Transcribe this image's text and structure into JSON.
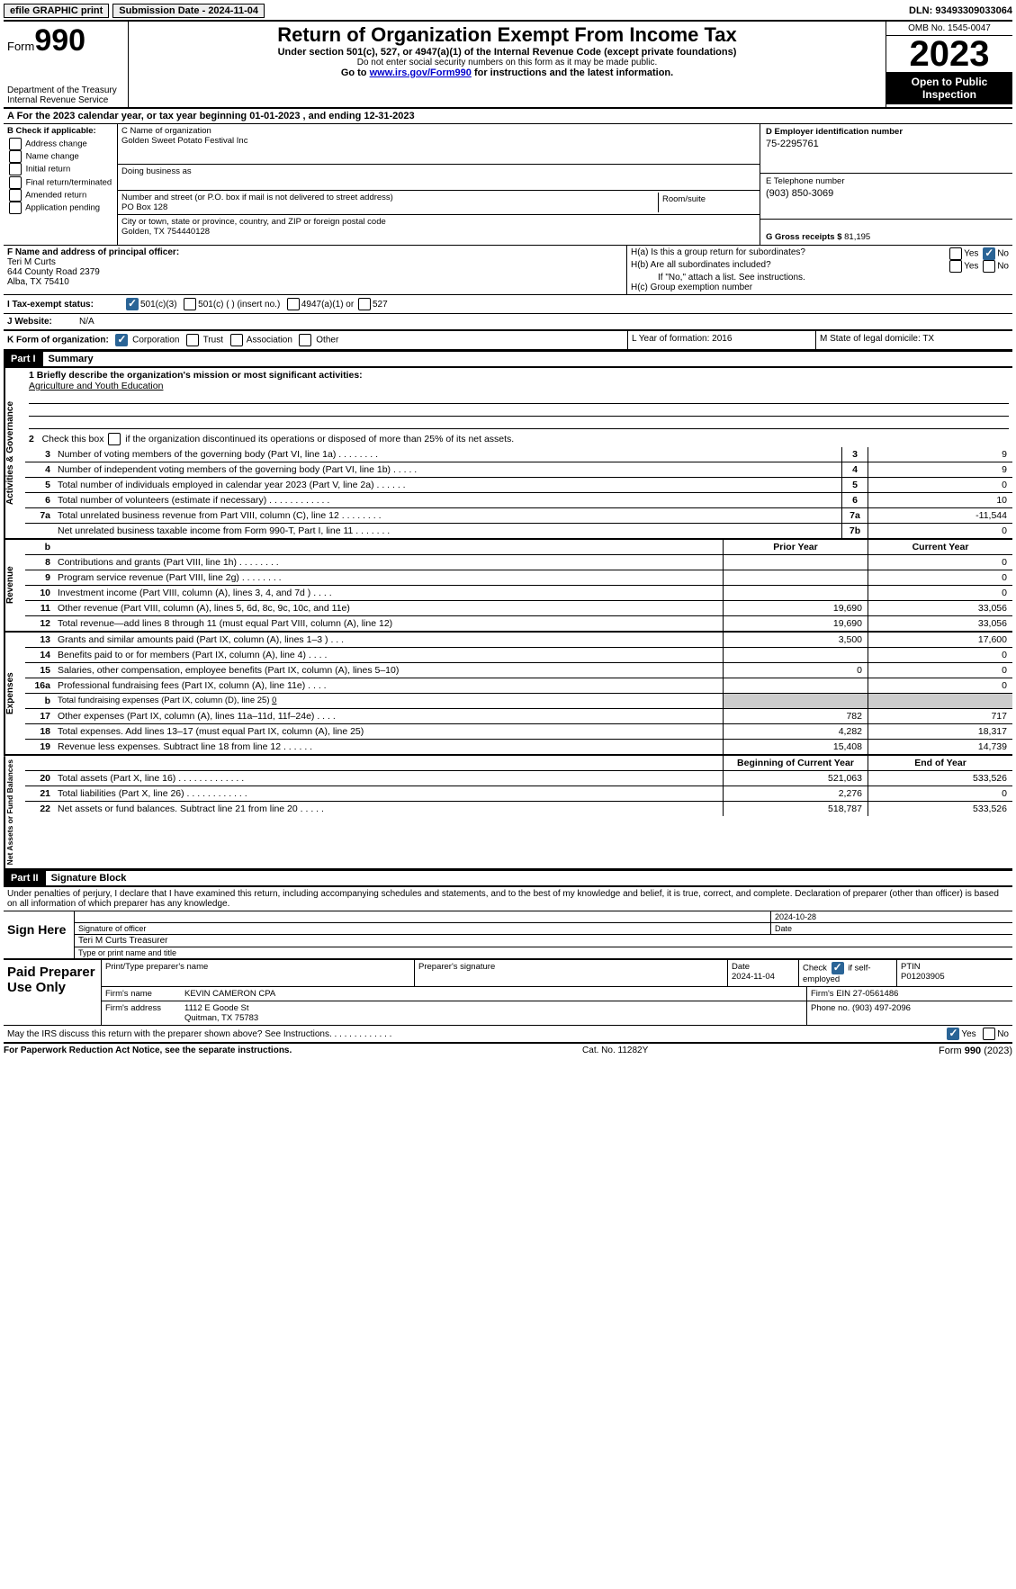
{
  "topbar": {
    "efile": "efile GRAPHIC print",
    "submission_label": "Submission Date - 2024-11-04",
    "dln": "DLN: 93493309033064"
  },
  "header": {
    "form_word": "Form",
    "form_num": "990",
    "dept": "Department of the Treasury Internal Revenue Service",
    "title": "Return of Organization Exempt From Income Tax",
    "sub1": "Under section 501(c), 527, or 4947(a)(1) of the Internal Revenue Code (except private foundations)",
    "sub2": "Do not enter social security numbers on this form as it may be made public.",
    "sub3_pre": "Go to ",
    "sub3_link": "www.irs.gov/Form990",
    "sub3_post": " for instructions and the latest information.",
    "omb": "OMB No. 1545-0047",
    "year": "2023",
    "inspect": "Open to Public Inspection"
  },
  "row_a": "A  For the 2023 calendar year, or tax year beginning 01-01-2023    , and ending 12-31-2023",
  "box_b": {
    "title": "B Check if applicable:",
    "opts": [
      "Address change",
      "Name change",
      "Initial return",
      "Final return/terminated",
      "Amended return",
      "Application pending"
    ]
  },
  "box_c": {
    "name_label": "C Name of organization",
    "name": "Golden Sweet Potato Festival Inc",
    "dba_label": "Doing business as",
    "dba": "",
    "street_label": "Number and street (or P.O. box if mail is not delivered to street address)",
    "street": "PO Box 128",
    "room_label": "Room/suite",
    "city_label": "City or town, state or province, country, and ZIP or foreign postal code",
    "city": "Golden, TX   754440128"
  },
  "box_d": {
    "label": "D Employer identification number",
    "val": "75-2295761"
  },
  "box_e": {
    "label": "E Telephone number",
    "val": "(903) 850-3069"
  },
  "box_g": {
    "label": "G Gross receipts $",
    "val": "81,195"
  },
  "box_f": {
    "label": "F  Name and address of principal officer:",
    "name": "Teri M Curts",
    "addr1": "644 County Road 2379",
    "addr2": "Alba, TX   75410"
  },
  "box_h": {
    "a": "H(a)  Is this a group return for subordinates?",
    "b": "H(b)  Are all subordinates included?",
    "b_note": "If \"No,\" attach a list. See instructions.",
    "c": "H(c)  Group exemption number",
    "yes": "Yes",
    "no": "No"
  },
  "row_i": {
    "label": "I    Tax-exempt status:",
    "o1": "501(c)(3)",
    "o2": "501(c) (  ) (insert no.)",
    "o3": "4947(a)(1) or",
    "o4": "527"
  },
  "row_j": {
    "label": "J    Website:",
    "val": "N/A"
  },
  "row_k": {
    "label": "K Form of organization:",
    "o1": "Corporation",
    "o2": "Trust",
    "o3": "Association",
    "o4": "Other"
  },
  "row_l": "L Year of formation: 2016",
  "row_m": "M State of legal domicile: TX",
  "part1": {
    "hdr": "Part I",
    "title": "Summary"
  },
  "governance": {
    "label": "Activities & Governance",
    "l1_label": "1   Briefly describe the organization's mission or most significant activities:",
    "l1_val": "Agriculture and Youth Education",
    "l2": "2   Check this box       if the organization discontinued its operations or disposed of more than 25% of its net assets.",
    "lines": [
      {
        "n": "3",
        "d": "Number of voting members of the governing body (Part VI, line 1a)   .    .    .    .    .    .    .    .",
        "b": "3",
        "v": "9"
      },
      {
        "n": "4",
        "d": "Number of independent voting members of the governing body (Part VI, line 1b)   .    .    .    .    .",
        "b": "4",
        "v": "9"
      },
      {
        "n": "5",
        "d": "Total number of individuals employed in calendar year 2023 (Part V, line 2a)   .    .    .    .    .    .",
        "b": "5",
        "v": "0"
      },
      {
        "n": "6",
        "d": "Total number of volunteers (estimate if necessary)   .    .    .    .    .    .    .    .    .    .    .    .",
        "b": "6",
        "v": "10"
      },
      {
        "n": "7a",
        "d": "Total unrelated business revenue from Part VIII, column (C), line 12   .    .    .    .    .    .    .    .",
        "b": "7a",
        "v": "-11,544"
      },
      {
        "n": "",
        "d": "Net unrelated business taxable income from Form 990-T, Part I, line 11   .    .    .    .    .    .    .",
        "b": "7b",
        "v": "0"
      }
    ],
    "b_label": "b"
  },
  "revenue": {
    "label": "Revenue",
    "hdr_prior": "Prior Year",
    "hdr_curr": "Current Year",
    "lines": [
      {
        "n": "8",
        "d": "Contributions and grants (Part VIII, line 1h)   .   .   .   .   .   .   .   .",
        "p": "",
        "c": "0"
      },
      {
        "n": "9",
        "d": "Program service revenue (Part VIII, line 2g)   .   .   .   .   .   .   .   .",
        "p": "",
        "c": "0"
      },
      {
        "n": "10",
        "d": "Investment income (Part VIII, column (A), lines 3, 4, and 7d )   .   .   .   .",
        "p": "",
        "c": "0"
      },
      {
        "n": "11",
        "d": "Other revenue (Part VIII, column (A), lines 5, 6d, 8c, 9c, 10c, and 11e)",
        "p": "19,690",
        "c": "33,056"
      },
      {
        "n": "12",
        "d": "Total revenue—add lines 8 through 11 (must equal Part VIII, column (A), line 12)",
        "p": "19,690",
        "c": "33,056"
      }
    ]
  },
  "expenses": {
    "label": "Expenses",
    "lines": [
      {
        "n": "13",
        "d": "Grants and similar amounts paid (Part IX, column (A), lines 1–3 )   .   .   .",
        "p": "3,500",
        "c": "17,600"
      },
      {
        "n": "14",
        "d": "Benefits paid to or for members (Part IX, column (A), line 4)   .   .   .   .",
        "p": "",
        "c": "0"
      },
      {
        "n": "15",
        "d": "Salaries, other compensation, employee benefits (Part IX, column (A), lines 5–10)",
        "p": "0",
        "c": "0"
      },
      {
        "n": "16a",
        "d": "Professional fundraising fees (Part IX, column (A), line 11e)   .   .   .   .",
        "p": "",
        "c": "0"
      },
      {
        "n": "b",
        "d": "Total fundraising expenses (Part IX, column (D), line 25) 0",
        "p": "shade",
        "c": "shade"
      },
      {
        "n": "17",
        "d": "Other expenses (Part IX, column (A), lines 11a–11d, 11f–24e)   .   .   .   .",
        "p": "782",
        "c": "717"
      },
      {
        "n": "18",
        "d": "Total expenses. Add lines 13–17 (must equal Part IX, column (A), line 25)",
        "p": "4,282",
        "c": "18,317"
      },
      {
        "n": "19",
        "d": "Revenue less expenses. Subtract line 18 from line 12   .   .   .   .   .   .",
        "p": "15,408",
        "c": "14,739"
      }
    ]
  },
  "netassets": {
    "label": "Net Assets or Fund Balances",
    "hdr_beg": "Beginning of Current Year",
    "hdr_end": "End of Year",
    "lines": [
      {
        "n": "20",
        "d": "Total assets (Part X, line 16)   .   .   .   .   .   .   .   .   .   .   .   .   .",
        "p": "521,063",
        "c": "533,526"
      },
      {
        "n": "21",
        "d": "Total liabilities (Part X, line 26)   .   .   .   .   .   .   .   .   .   .   .   .",
        "p": "2,276",
        "c": "0"
      },
      {
        "n": "22",
        "d": "Net assets or fund balances. Subtract line 21 from line 20   .   .   .   .   .",
        "p": "518,787",
        "c": "533,526"
      }
    ]
  },
  "part2": {
    "hdr": "Part II",
    "title": "Signature Block"
  },
  "penalty": "Under penalties of perjury, I declare that I have examined this return, including accompanying schedules and statements, and to the best of my knowledge and belief, it is true, correct, and complete. Declaration of preparer (other than officer) is based on all information of which preparer has any knowledge.",
  "sign": {
    "left": "Sign Here",
    "date": "2024-10-28",
    "sig_label": "Signature of officer",
    "name": "Teri M Curts  Treasurer",
    "name_label": "Type or print name and title",
    "date_label": "Date"
  },
  "prep": {
    "left": "Paid Preparer Use Only",
    "h1": "Print/Type preparer's name",
    "h2": "Preparer's signature",
    "h3": "Date",
    "h3v": "2024-11-04",
    "h4": "Check        if self-employed",
    "h5": "PTIN",
    "h5v": "P01203905",
    "firm_label": "Firm's name",
    "firm": "KEVIN CAMERON CPA",
    "ein_label": "Firm's EIN",
    "ein": "27-0561486",
    "addr_label": "Firm's address",
    "addr1": "1112 E Goode St",
    "addr2": "Quitman, TX   75783",
    "phone_label": "Phone no.",
    "phone": "(903) 497-2096"
  },
  "discuss": {
    "q": "May the IRS discuss this return with the preparer shown above? See Instructions.    .    .    .    .    .    .    .    .    .    .    .    .",
    "yes": "Yes",
    "no": "No"
  },
  "footer": {
    "l": "For Paperwork Reduction Act Notice, see the separate instructions.",
    "c": "Cat. No. 11282Y",
    "r_pre": "Form ",
    "r_b": "990",
    "r_post": " (2023)"
  }
}
